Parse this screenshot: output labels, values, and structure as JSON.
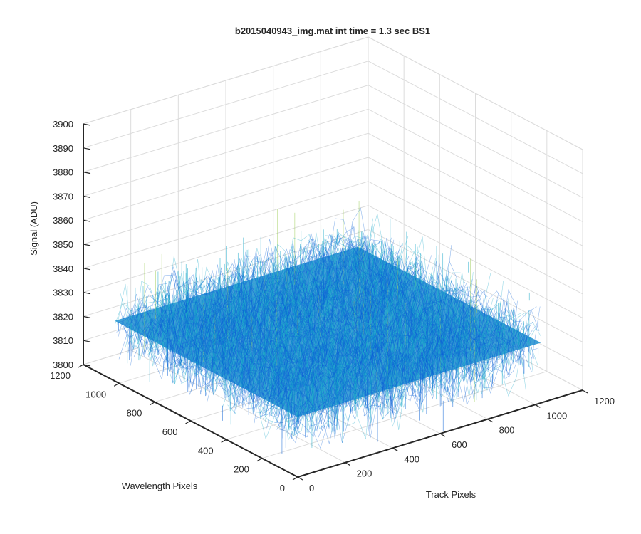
{
  "chart_data": {
    "type": "surface",
    "title": "b2015040943_img.mat int time = 1.3 sec   BS1",
    "xlabel": "Track Pixels",
    "ylabel": "Wavelength Pixels",
    "zlabel": "Signal (ADU)",
    "xlim": [
      0,
      1200
    ],
    "ylim": [
      0,
      1200
    ],
    "zlim": [
      3800,
      3900
    ],
    "xticks": [
      "0",
      "200",
      "400",
      "600",
      "800",
      "1000",
      "1200"
    ],
    "yticks": [
      "0",
      "200",
      "400",
      "600",
      "800",
      "1000",
      "1200"
    ],
    "zticks": [
      "3800",
      "3810",
      "3820",
      "3830",
      "3840",
      "3850",
      "3860",
      "3870",
      "3880",
      "3890",
      "3900"
    ],
    "data_extent": {
      "x": [
        0,
        1024
      ],
      "y": [
        0,
        1024
      ]
    },
    "signal_mean": 3825,
    "signal_spread": 30,
    "grid": true,
    "colors": {
      "low": "#0a62d6",
      "mid": "#19a9c9",
      "high": "#9fcf5a"
    }
  }
}
